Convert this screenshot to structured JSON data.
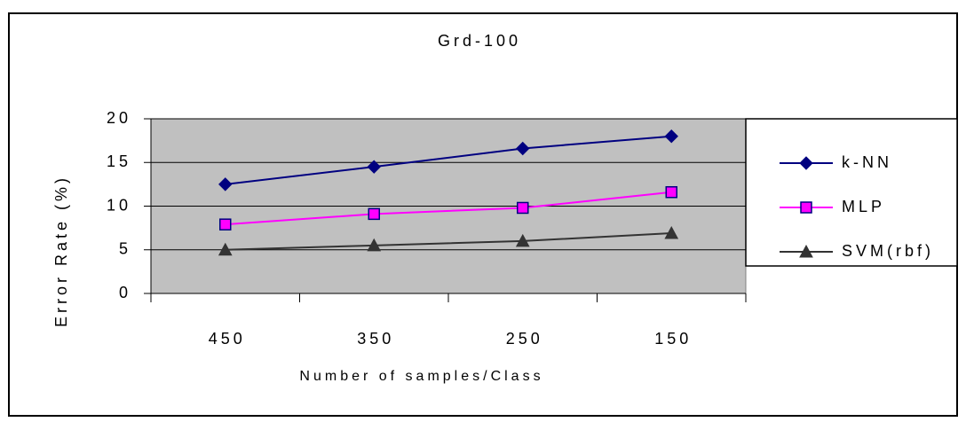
{
  "chart_data": {
    "type": "line",
    "title": "Grd-100",
    "x_label": "Number of samples/Class",
    "y_label": "Error Rate (%)",
    "categories": [
      "450",
      "350",
      "250",
      "150"
    ],
    "series": [
      {
        "name": "k-NN",
        "color": "#000080",
        "marker": "diamond",
        "values": [
          12.5,
          14.5,
          16.6,
          18
        ]
      },
      {
        "name": "MLP",
        "color": "#ff00ff",
        "marker": "square",
        "values": [
          7.9,
          9.1,
          9.8,
          11.6
        ]
      },
      {
        "name": "SVM(rbf)",
        "color": "#333333",
        "marker": "triangle",
        "values": [
          5,
          5.5,
          6,
          6.9
        ]
      }
    ],
    "ylim": [
      0,
      20
    ],
    "yticks": [
      0,
      5,
      10,
      15,
      20
    ],
    "grid": true,
    "legend": "right"
  }
}
